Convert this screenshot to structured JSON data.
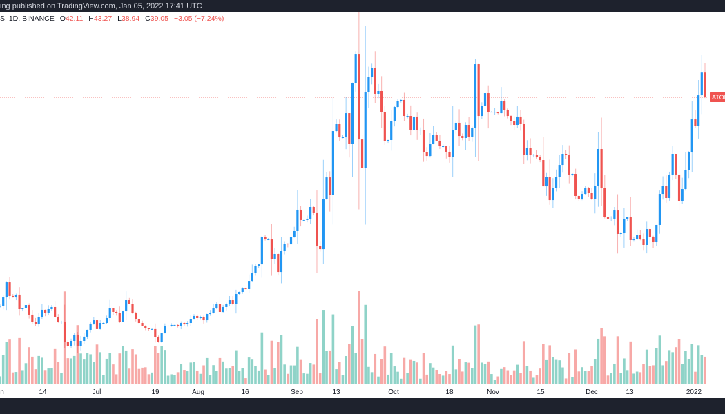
{
  "header": {
    "published_text": "ing published on TradingView.com, Jan 05, 2022 17:41 UTC"
  },
  "legend": {
    "symbol_text": "S, 1D, BINANCE",
    "open_label": "O",
    "open": "42.11",
    "high_label": "H",
    "high": "43.27",
    "low_label": "L",
    "low": "38.94",
    "close_label": "C",
    "close": "39.05",
    "change": "−3.05 (−7.24%)"
  },
  "price_label": "ATOM",
  "colors": {
    "up": "#2196f3",
    "down": "#ef5350",
    "volume_up": "#8fd3c8",
    "volume_down": "#f7a9a7",
    "topbar": "#1e222d"
  },
  "chart_data": {
    "type": "candlestick",
    "interval": "1D",
    "exchange": "BINANCE",
    "x_ticks": [
      "n",
      "14",
      "Jul",
      "19",
      "Aug",
      "16",
      "Sep",
      "13",
      "Oct",
      "18",
      "Nov",
      "15",
      "Dec",
      "13",
      "2022"
    ],
    "last": {
      "open": 42.11,
      "high": 43.27,
      "low": 38.94,
      "close": 39.05
    },
    "closes": [
      13.24,
      14.26,
      16.14,
      14.44,
      14.26,
      14.61,
      12.81,
      12.9,
      13.32,
      12.13,
      11.27,
      10.93,
      11.87,
      12.73,
      12.38,
      12.81,
      13.07,
      11.87,
      11.19,
      11.27,
      8.71,
      8.28,
      8.88,
      9.65,
      8.28,
      8.88,
      9.4,
      10.25,
      11.02,
      11.44,
      10.34,
      11.1,
      11.1,
      11.7,
      12.9,
      12.47,
      12.3,
      11.27,
      12.55,
      13.92,
      13.49,
      12.3,
      11.53,
      11.1,
      10.76,
      10.42,
      10.34,
      10.34,
      9.31,
      8.71,
      9.82,
      10.76,
      10.76,
      10.85,
      10.85,
      10.76,
      11.1,
      10.93,
      11.1,
      11.53,
      11.96,
      11.7,
      11.79,
      11.44,
      12.21,
      12.38,
      12.98,
      13.41,
      12.47,
      13.07,
      13.49,
      13.92,
      13.41,
      14.69,
      14.95,
      15.37,
      15.29,
      16.31,
      17.34,
      18.19,
      18.36,
      21.78,
      21.44,
      21.44,
      19.05,
      19.65,
      17.42,
      19.99,
      20.93,
      20.84,
      21.78,
      22.47,
      25.12,
      23.84,
      23.84,
      24.01,
      25.46,
      24.78,
      20.67,
      20.24,
      26.48,
      29.13,
      26.99,
      34.86,
      35.72,
      34.09,
      34.09,
      37.08,
      33.32,
      40.84,
      44.43,
      33.83,
      30.25,
      39.73,
      41.61,
      42.72,
      39.48,
      39.82,
      37.17,
      33.58,
      33.75,
      36.14,
      37.85,
      38.62,
      38.71,
      36.74,
      36.74,
      35.03,
      36.66,
      34.95,
      35.03,
      32.21,
      31.78,
      33.32,
      34.43,
      33.66,
      32.98,
      32.98,
      32.3,
      31.7,
      34.95,
      35.89,
      34.26,
      34.01,
      35.63,
      34.18,
      35.29,
      43.15,
      36.74,
      38.02,
      39.56,
      37.25,
      37.25,
      37.25,
      37.08,
      38.54,
      37.51,
      36.74,
      36.14,
      35.63,
      36.66,
      35.8,
      31.95,
      32.81,
      31.95,
      31.95,
      31.7,
      31.27,
      28.02,
      29.22,
      26.31,
      27.85,
      29.22,
      30.67,
      32.04,
      31.95,
      29.48,
      29.56,
      26.83,
      26.4,
      27.08,
      27.85,
      27.25,
      26.4,
      28.11,
      32.64,
      27.85,
      24.26,
      24.01,
      24.01,
      25.03,
      22.13,
      22.21,
      24.01,
      24.18,
      21.36,
      21.44,
      21.96,
      21.44,
      20.76,
      22.72,
      21.78,
      21.1,
      23.24,
      27.08,
      28.11,
      26.57,
      29.48,
      32.04,
      29.48,
      26.23,
      27.68,
      29.99,
      32.21,
      36.31,
      35.46,
      39.3,
      42.11,
      39.05
    ]
  }
}
